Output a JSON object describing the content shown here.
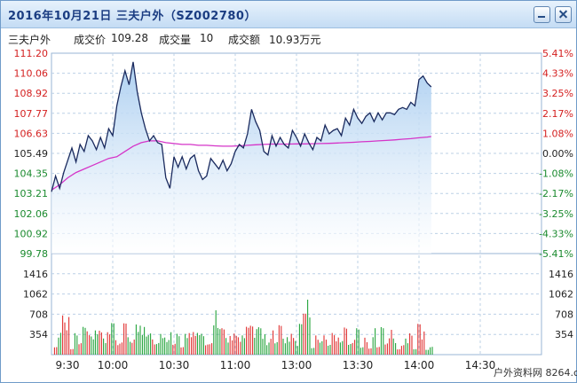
{
  "window": {
    "title": "2016年10月21日 三夫户外（SZ002780）",
    "minimize_icon": "minimize-icon",
    "close_icon": "close-icon"
  },
  "info": {
    "name": "三夫户外",
    "price_label": "成交价",
    "price": "109.28",
    "volume_label": "成交量",
    "volume": "10",
    "amount_label": "成交额",
    "amount": "10.93万元"
  },
  "watermark": "户外资料网 8264.com",
  "chart_data": {
    "type": "line",
    "y_left_ticks": [
      "111.20",
      "110.06",
      "108.92",
      "107.77",
      "106.63",
      "105.49",
      "104.35",
      "103.21",
      "102.06",
      "100.92",
      "99.78"
    ],
    "y_right_ticks": [
      "5.41%",
      "4.33%",
      "3.25%",
      "2.17%",
      "1.08%",
      "0.00%",
      "-1.08%",
      "-2.17%",
      "-3.25%",
      "-4.33%",
      "-5.41%"
    ],
    "y_range": [
      99.78,
      111.2
    ],
    "prev_close": 105.49,
    "volume_ticks": [
      "1416",
      "1062",
      "708",
      "354"
    ],
    "volume_range": [
      0,
      1770
    ],
    "x_tick_labels": [
      "9:30",
      "10:00",
      "10:30",
      "11:00",
      "13:00",
      "13:30",
      "14:00",
      "14:30"
    ],
    "x_total_minutes": 240,
    "price": {
      "name": "成交价",
      "color": "#1a2a5e",
      "points": [
        [
          0,
          103.3
        ],
        [
          2,
          104.2
        ],
        [
          4,
          103.5
        ],
        [
          6,
          104.4
        ],
        [
          8,
          105.1
        ],
        [
          10,
          105.8
        ],
        [
          12,
          105.0
        ],
        [
          14,
          106.0
        ],
        [
          16,
          105.6
        ],
        [
          18,
          106.5
        ],
        [
          20,
          106.2
        ],
        [
          22,
          105.7
        ],
        [
          24,
          106.4
        ],
        [
          26,
          105.8
        ],
        [
          28,
          106.9
        ],
        [
          30,
          106.5
        ],
        [
          32,
          108.2
        ],
        [
          34,
          109.3
        ],
        [
          36,
          110.2
        ],
        [
          38,
          109.4
        ],
        [
          40,
          110.7
        ],
        [
          42,
          109.0
        ],
        [
          44,
          107.8
        ],
        [
          46,
          106.9
        ],
        [
          48,
          106.2
        ],
        [
          50,
          106.5
        ],
        [
          52,
          106.1
        ],
        [
          54,
          106.0
        ],
        [
          56,
          104.1
        ],
        [
          58,
          103.5
        ],
        [
          60,
          105.3
        ],
        [
          62,
          104.7
        ],
        [
          64,
          105.3
        ],
        [
          66,
          104.6
        ],
        [
          68,
          105.2
        ],
        [
          70,
          105.4
        ],
        [
          72,
          104.5
        ],
        [
          74,
          104.0
        ],
        [
          76,
          104.2
        ],
        [
          78,
          105.2
        ],
        [
          80,
          104.9
        ],
        [
          82,
          104.6
        ],
        [
          84,
          105.1
        ],
        [
          86,
          104.5
        ],
        [
          88,
          104.9
        ],
        [
          90,
          105.6
        ],
        [
          92,
          106.0
        ],
        [
          94,
          105.8
        ],
        [
          96,
          106.6
        ],
        [
          98,
          108.0
        ],
        [
          100,
          107.3
        ],
        [
          102,
          106.8
        ],
        [
          104,
          105.6
        ],
        [
          106,
          105.4
        ],
        [
          108,
          106.5
        ],
        [
          110,
          105.9
        ],
        [
          112,
          106.4
        ],
        [
          114,
          106.0
        ],
        [
          116,
          105.8
        ],
        [
          118,
          106.8
        ],
        [
          120,
          106.4
        ],
        [
          122,
          105.9
        ],
        [
          124,
          106.6
        ],
        [
          126,
          106.1
        ],
        [
          128,
          105.7
        ],
        [
          130,
          106.4
        ],
        [
          132,
          106.2
        ],
        [
          134,
          107.1
        ],
        [
          136,
          106.6
        ],
        [
          138,
          106.8
        ],
        [
          140,
          106.9
        ],
        [
          142,
          106.5
        ],
        [
          144,
          107.5
        ],
        [
          146,
          107.1
        ],
        [
          148,
          108.0
        ],
        [
          150,
          107.5
        ],
        [
          152,
          107.2
        ],
        [
          154,
          107.6
        ],
        [
          156,
          107.8
        ],
        [
          158,
          107.3
        ],
        [
          160,
          107.8
        ],
        [
          162,
          107.4
        ],
        [
          164,
          107.8
        ],
        [
          166,
          107.8
        ],
        [
          168,
          107.7
        ],
        [
          170,
          108.0
        ],
        [
          172,
          108.1
        ],
        [
          174,
          108.0
        ],
        [
          176,
          108.4
        ],
        [
          178,
          108.2
        ],
        [
          180,
          109.7
        ],
        [
          182,
          109.9
        ],
        [
          184,
          109.5
        ],
        [
          186,
          109.28
        ]
      ]
    },
    "average": {
      "name": "均价",
      "color": "#d534c8",
      "points": [
        [
          0,
          103.4
        ],
        [
          4,
          103.7
        ],
        [
          8,
          104.1
        ],
        [
          12,
          104.4
        ],
        [
          16,
          104.6
        ],
        [
          20,
          104.8
        ],
        [
          24,
          105.0
        ],
        [
          28,
          105.2
        ],
        [
          32,
          105.3
        ],
        [
          36,
          105.6
        ],
        [
          40,
          105.9
        ],
        [
          44,
          106.1
        ],
        [
          48,
          106.2
        ],
        [
          52,
          106.2
        ],
        [
          56,
          106.1
        ],
        [
          60,
          106.05
        ],
        [
          64,
          106.0
        ],
        [
          68,
          106.0
        ],
        [
          72,
          105.95
        ],
        [
          76,
          105.95
        ],
        [
          80,
          105.92
        ],
        [
          84,
          105.9
        ],
        [
          88,
          105.9
        ],
        [
          92,
          105.92
        ],
        [
          96,
          105.95
        ],
        [
          100,
          105.98
        ],
        [
          104,
          106.0
        ],
        [
          108,
          106.02
        ],
        [
          112,
          106.02
        ],
        [
          116,
          106.02
        ],
        [
          120,
          106.03
        ],
        [
          124,
          106.03
        ],
        [
          128,
          106.04
        ],
        [
          132,
          106.05
        ],
        [
          136,
          106.06
        ],
        [
          140,
          106.08
        ],
        [
          144,
          106.1
        ],
        [
          148,
          106.12
        ],
        [
          152,
          106.15
        ],
        [
          156,
          106.17
        ],
        [
          160,
          106.2
        ],
        [
          164,
          106.23
        ],
        [
          168,
          106.26
        ],
        [
          172,
          106.3
        ],
        [
          176,
          106.33
        ],
        [
          180,
          106.38
        ],
        [
          184,
          106.42
        ],
        [
          186,
          106.45
        ]
      ]
    },
    "volume_colors": {
      "up": "#e03030",
      "down": "#22a33a"
    }
  }
}
